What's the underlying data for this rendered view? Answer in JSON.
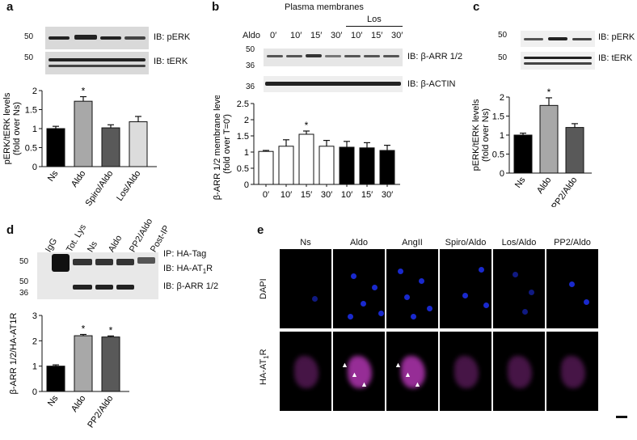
{
  "panels": {
    "a": {
      "letter": "a",
      "blot_labels": [
        "IB: pERK",
        "IB: tERK"
      ],
      "markers": [
        "50",
        "50"
      ],
      "chart_data": {
        "type": "bar",
        "categories": [
          "Ns",
          "Aldo",
          "Spiro/Aldo",
          "Los/Aldo"
        ],
        "values": [
          1.0,
          1.72,
          1.02,
          1.18
        ],
        "errors": [
          0.06,
          0.12,
          0.08,
          0.14
        ],
        "colors": [
          "#000000",
          "#a8a8a8",
          "#595959",
          "#dcdcdc"
        ],
        "significant": [
          false,
          true,
          false,
          false
        ],
        "sig_mark": "*",
        "ylabel": "pERK/tERK levels (fold over Ns)",
        "ylabel_lines": [
          "pERK/tERK levels",
          "(fold over Ns)"
        ],
        "ylim": [
          0,
          2
        ],
        "yticks": [
          "0",
          "0.5",
          "1",
          "1.5",
          "2"
        ]
      }
    },
    "b": {
      "letter": "b",
      "title": "Plasma membranes",
      "group_label": "Los",
      "lane_row_label": "Aldo",
      "lanes": [
        "0′",
        "10′",
        "15′",
        "30′",
        "10′",
        "15′",
        "30′"
      ],
      "blot_labels": [
        "IB: β-ARR 1/2",
        "IB: β-ACTIN"
      ],
      "markers": [
        "50",
        "36",
        "36"
      ],
      "chart_data": {
        "type": "bar",
        "categories": [
          "0′",
          "10′",
          "15′",
          "30′",
          "10′",
          "15′",
          "30′"
        ],
        "values": [
          1.02,
          1.18,
          1.55,
          1.18,
          1.15,
          1.13,
          1.05
        ],
        "errors": [
          0.03,
          0.2,
          0.1,
          0.18,
          0.18,
          0.16,
          0.16
        ],
        "colors": [
          "#ffffff",
          "#ffffff",
          "#ffffff",
          "#ffffff",
          "#000000",
          "#000000",
          "#000000"
        ],
        "significant": [
          false,
          false,
          true,
          false,
          false,
          false,
          false
        ],
        "sig_mark": "*",
        "ylabel": "β-ARR 1/2 membrane levels (fold over T=0′)",
        "ylabel_lines": [
          "β-ARR 1/2 membrane levels",
          "(fold over T=0′)"
        ],
        "ylim": [
          0,
          2.5
        ],
        "yticks": [
          "0",
          "0.5",
          "1",
          "1.5",
          "2",
          "2.5"
        ]
      }
    },
    "c": {
      "letter": "c",
      "blot_labels": [
        "IB: pERK",
        "IB: tERK"
      ],
      "markers": [
        "50",
        "50"
      ],
      "chart_data": {
        "type": "bar",
        "categories": [
          "Ns",
          "Aldo",
          "PP2/Aldo"
        ],
        "values": [
          1.0,
          1.78,
          1.2
        ],
        "errors": [
          0.05,
          0.2,
          0.1
        ],
        "colors": [
          "#000000",
          "#a8a8a8",
          "#595959"
        ],
        "significant": [
          false,
          true,
          false
        ],
        "sig_mark": "*",
        "ylabel": "pERK/tERK levels (fold over Ns)",
        "ylabel_lines": [
          "pERK/tERK levels",
          "(fold over Ns)"
        ],
        "ylim": [
          0,
          2
        ],
        "yticks": [
          "0",
          "0.5",
          "1",
          "1.5",
          "2"
        ]
      }
    },
    "d": {
      "letter": "d",
      "lanes": [
        "IgG",
        "Tot. Lys",
        "Ns",
        "Aldo",
        "PP2/Aldo",
        "Post-IP"
      ],
      "blot_labels": [
        "IP: HA-Tag",
        "IB: HA-AT",
        "R",
        "IB: β-ARR 1/2"
      ],
      "markers": [
        "50",
        "50",
        "36"
      ],
      "chart_data": {
        "type": "bar",
        "categories": [
          "Ns",
          "Aldo",
          "PP2/Aldo"
        ],
        "values": [
          1.0,
          2.2,
          2.15
        ],
        "errors": [
          0.05,
          0.05,
          0.04
        ],
        "colors": [
          "#000000",
          "#a8a8a8",
          "#595959"
        ],
        "significant": [
          false,
          true,
          true
        ],
        "sig_mark": "*",
        "ylabel": "β-ARR 1/2/HA-AT1R",
        "ylim": [
          0,
          3
        ],
        "yticks": [
          "0",
          "1",
          "2",
          "3"
        ]
      }
    },
    "e": {
      "letter": "e",
      "columns": [
        "Ns",
        "Aldo",
        "AngII",
        "Spiro/Aldo",
        "Los/Aldo",
        "PP2/Aldo"
      ],
      "rows": [
        "DAPI",
        "HA-AT",
        "R"
      ],
      "colors": {
        "dapi": "#1a2bd8",
        "receptor": "#c83cc8"
      }
    }
  }
}
